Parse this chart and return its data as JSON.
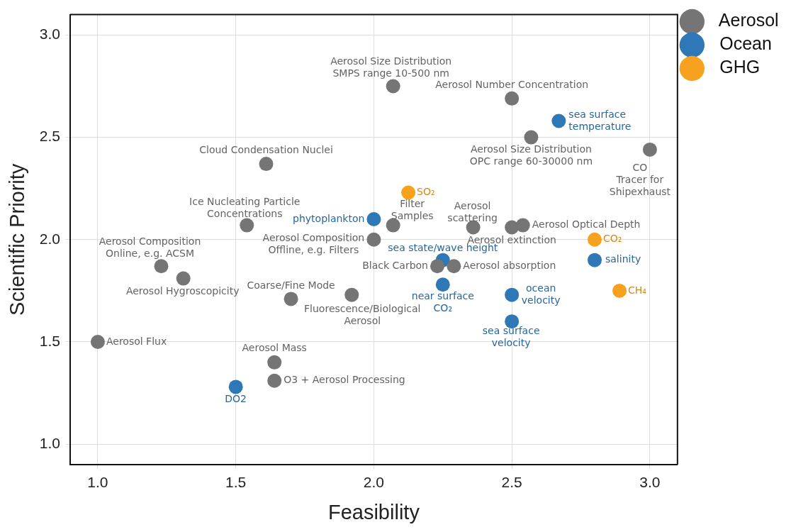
{
  "chart_data": {
    "type": "scatter",
    "xlabel": "Feasibility",
    "ylabel": "Scientific Priority",
    "xlim": [
      0.9,
      3.1
    ],
    "ylim": [
      0.9,
      3.1
    ],
    "xticks": [
      {
        "value": 1,
        "label": "1.0"
      },
      {
        "value": 1.5,
        "label": "1.5"
      },
      {
        "value": 2,
        "label": "2.0"
      },
      {
        "value": 2.5,
        "label": "2.5"
      },
      {
        "value": 3,
        "label": "3.0"
      }
    ],
    "yticks": [
      {
        "value": 1,
        "label": "1.0"
      },
      {
        "value": 1.5,
        "label": "1.5"
      },
      {
        "value": 2,
        "label": "2.0"
      },
      {
        "value": 2.5,
        "label": "2.5"
      },
      {
        "value": 3,
        "label": "3.0"
      }
    ],
    "grid": true,
    "legend": "top right",
    "marker": "circle",
    "series": [
      {
        "name": "Aerosol",
        "color": "#757575",
        "x": [
          2.07,
          2.5,
          2.57,
          3.0,
          1.61,
          1.54,
          2.07,
          2.36,
          2.5,
          2.54,
          2.0,
          1.23,
          1.31,
          2.23,
          2.29,
          1.7,
          1.92,
          1.0,
          1.64,
          1.64
        ],
        "values": [
          2.75,
          2.69,
          2.5,
          2.44,
          2.37,
          2.07,
          2.07,
          2.06,
          2.06,
          2.07,
          2.0,
          1.87,
          1.81,
          1.87,
          1.87,
          1.71,
          1.73,
          1.5,
          1.4,
          1.31
        ]
      },
      {
        "name": "Ocean",
        "color": "#2e78b7",
        "x": [
          2.67,
          2.0,
          2.25,
          2.8,
          2.25,
          2.5,
          2.5,
          1.5
        ],
        "values": [
          2.58,
          2.1,
          1.9,
          1.9,
          1.78,
          1.73,
          1.6,
          1.28
        ]
      },
      {
        "name": "GHG",
        "color": "#f6a21e",
        "x": [
          2.125,
          2.8,
          2.89
        ],
        "values": [
          2.23,
          2.0,
          1.75
        ]
      }
    ],
    "annotations": [
      {
        "text": "Aerosol Size Distribution\nSMPS range 10-500 nm",
        "x": 2.07,
        "y": 2.75
      },
      {
        "text": "Aerosol Number Concentration",
        "x": 2.5,
        "y": 2.69
      },
      {
        "text": "sea surface\ntemperature",
        "x": 2.67,
        "y": 2.58
      },
      {
        "text": "Aerosol Size Distribution\nOPC range 60-30000 nm",
        "x": 2.57,
        "y": 2.5
      },
      {
        "text": "CO\nTracer for\nShipexhaust",
        "x": 3.0,
        "y": 2.44
      },
      {
        "text": "Cloud Condensation Nuclei",
        "x": 1.61,
        "y": 2.37
      },
      {
        "text": "SO₂",
        "x": 2.125,
        "y": 2.23
      },
      {
        "text": "Filter\nSamples",
        "x": 2.07,
        "y": 2.07
      },
      {
        "text": "Ice Nucleating Particle\nConcentrations",
        "x": 1.54,
        "y": 2.07
      },
      {
        "text": "phytoplankton",
        "x": 2.0,
        "y": 2.1
      },
      {
        "text": "Aerosol\nscattering",
        "x": 2.36,
        "y": 2.06
      },
      {
        "text": "Aerosol extinction",
        "x": 2.5,
        "y": 2.06
      },
      {
        "text": "Aerosol Optical Depth",
        "x": 2.54,
        "y": 2.07
      },
      {
        "text": "Aerosol Composition\nOffline, e.g. Filters",
        "x": 2.0,
        "y": 2.0
      },
      {
        "text": "CO₂",
        "x": 2.8,
        "y": 2.0
      },
      {
        "text": "Aerosol Composition\nOnline, e.g. ACSM",
        "x": 1.23,
        "y": 1.87
      },
      {
        "text": "Aerosol Hygroscopicity",
        "x": 1.31,
        "y": 1.81
      },
      {
        "text": "sea state/wave height",
        "x": 2.25,
        "y": 1.9
      },
      {
        "text": "salinity",
        "x": 2.8,
        "y": 1.9
      },
      {
        "text": "Black Carbon",
        "x": 2.23,
        "y": 1.87
      },
      {
        "text": "Aerosol absorption",
        "x": 2.29,
        "y": 1.87
      },
      {
        "text": "near surface\nCO₂",
        "x": 2.25,
        "y": 1.78
      },
      {
        "text": "ocean\nvelocity",
        "x": 2.5,
        "y": 1.73
      },
      {
        "text": "Coarse/Fine Mode",
        "x": 1.7,
        "y": 1.71
      },
      {
        "text": "Fluorescence/Biological\nAerosol",
        "x": 1.92,
        "y": 1.73
      },
      {
        "text": "sea surface\nvelocity",
        "x": 2.5,
        "y": 1.6
      },
      {
        "text": "CH₄",
        "x": 2.89,
        "y": 1.75
      },
      {
        "text": "Aerosol Flux",
        "x": 1.0,
        "y": 1.5
      },
      {
        "text": "Aerosol Mass",
        "x": 1.64,
        "y": 1.4
      },
      {
        "text": "O3 + Aerosol Processing",
        "x": 1.64,
        "y": 1.31
      },
      {
        "text": "DO2",
        "x": 1.5,
        "y": 1.28
      }
    ]
  }
}
